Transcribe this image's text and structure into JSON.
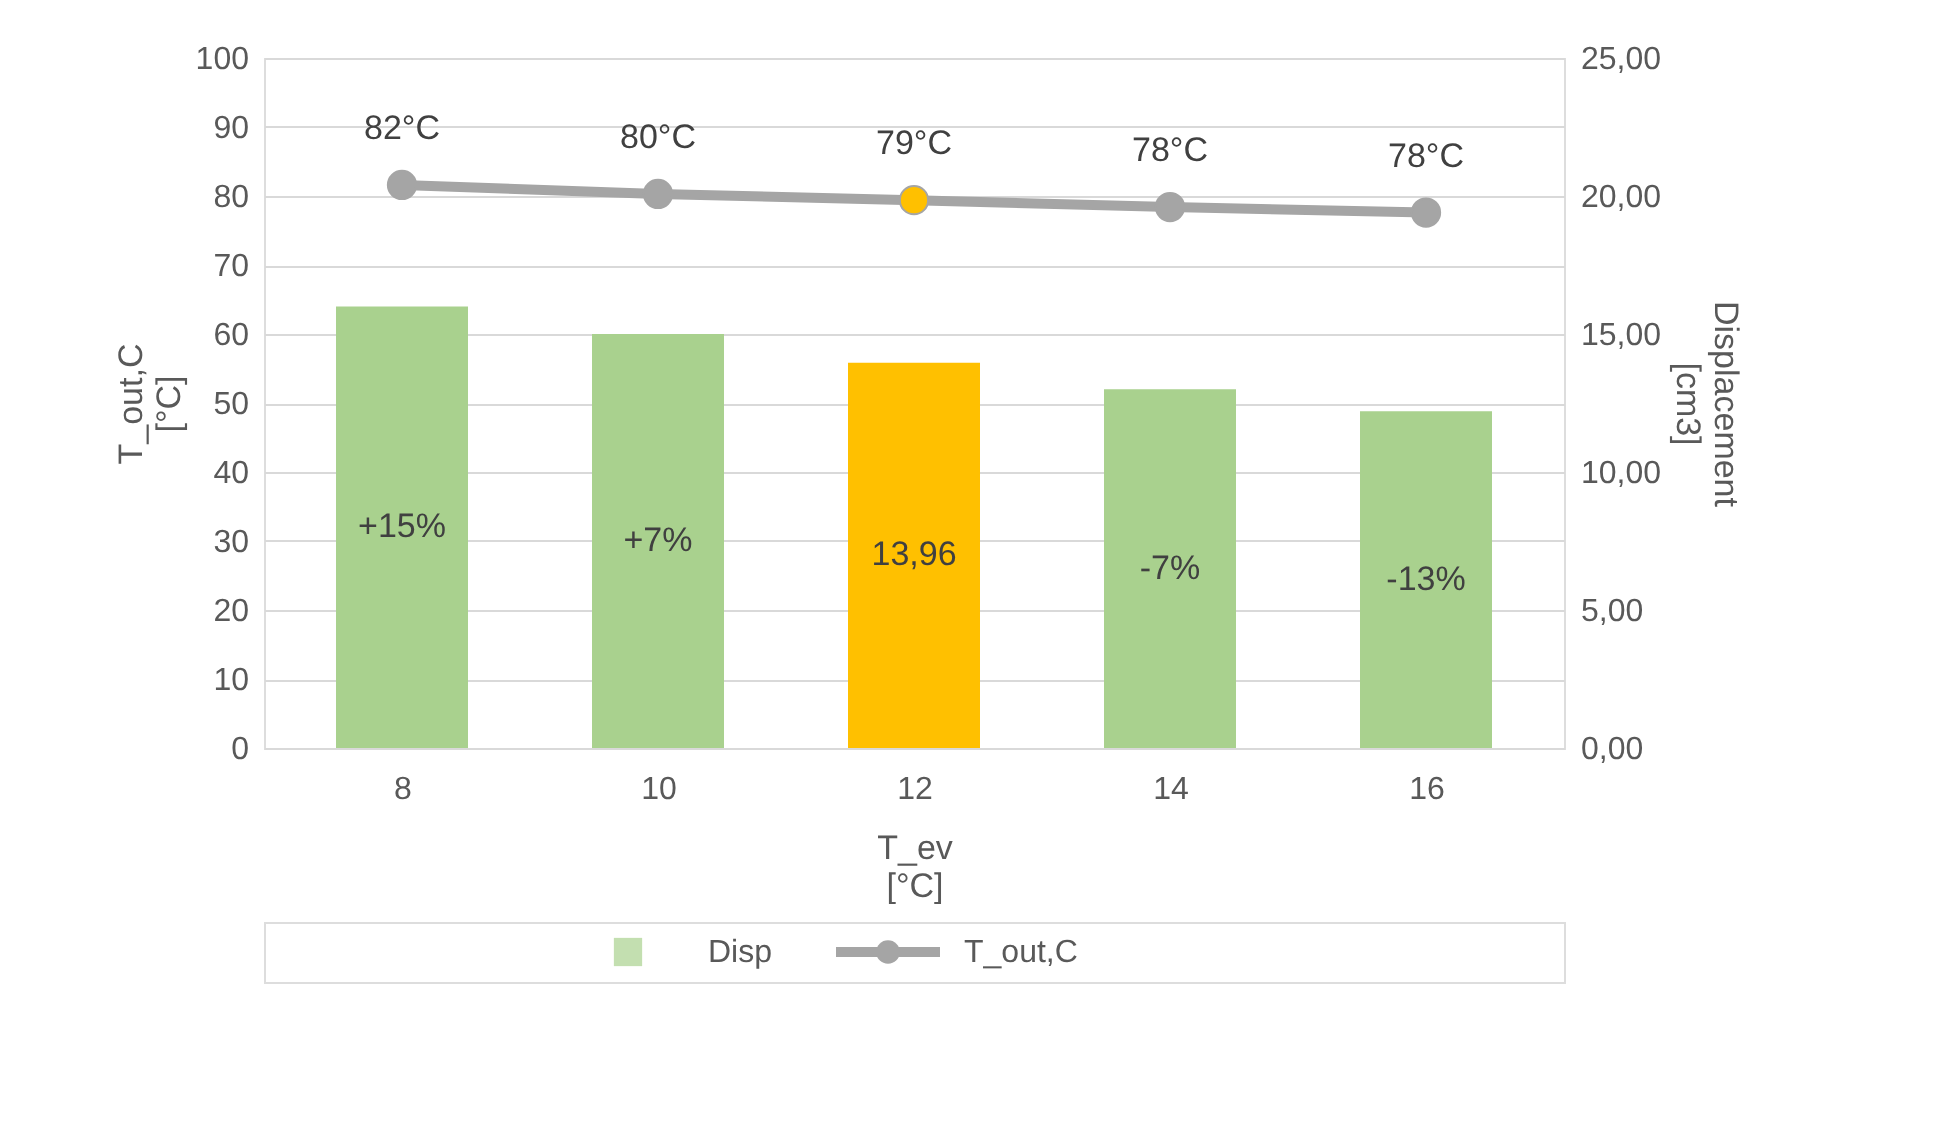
{
  "chart_data": {
    "type": "bar",
    "categories": [
      "8",
      "10",
      "12",
      "14",
      "16"
    ],
    "xlabel": "T_ev\n[°C]",
    "ylabel": "T_out,C\n[°C]",
    "y2label": "Displacement\n[cm3]",
    "ylim": [
      0,
      100
    ],
    "yticks": [
      0,
      10,
      20,
      30,
      40,
      50,
      60,
      70,
      80,
      90,
      100
    ],
    "y2lim": [
      0,
      25
    ],
    "y2ticks": [
      {
        "value": 0,
        "label": "0,00"
      },
      {
        "value": 5,
        "label": "5,00"
      },
      {
        "value": 10,
        "label": "10,00"
      },
      {
        "value": 15,
        "label": "15,00"
      },
      {
        "value": 20,
        "label": "20,00"
      },
      {
        "value": 25,
        "label": "25,00"
      }
    ],
    "grid": "y",
    "legend": "bottom",
    "annotations": [
      "+15%",
      "+7%",
      "-7%",
      "-13%"
    ],
    "series": [
      {
        "name": "Disp",
        "axis": "y2",
        "color": "#a9d18e",
        "colors": [
          "#a9d18e",
          "#a9d18e",
          "#ffc000",
          "#a9d18e",
          "#a9d18e"
        ],
        "values": [
          16.0,
          15.0,
          13.96,
          13.0,
          12.2
        ],
        "value_labels": [
          null,
          null,
          "13,96",
          null,
          null
        ]
      },
      {
        "name": "T_out,C",
        "type": "line",
        "axis": "y",
        "color": "#a5a5a5",
        "colors": [
          "#a5a5a5",
          "#a5a5a5",
          "#ffc000",
          "#a5a5a5",
          "#a5a5a5"
        ],
        "marker": "circle",
        "values": [
          81.6,
          80.3,
          79.4,
          78.4,
          77.6
        ],
        "value_labels": [
          "82°C",
          "80°C",
          "79°C",
          "78°C",
          "78°C"
        ]
      }
    ]
  }
}
